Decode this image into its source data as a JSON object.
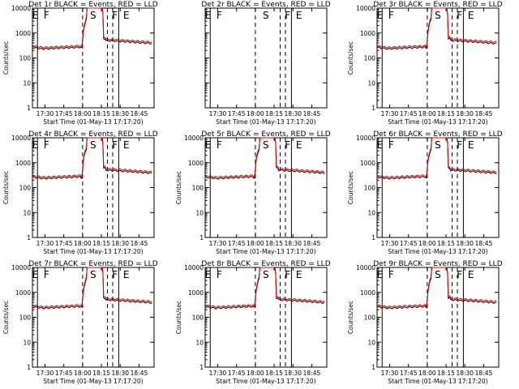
{
  "chart_data": [
    {
      "type": "line",
      "title": "Det 1r BLACK = Events, RED = LLD",
      "xlabel": "Start Time (01-May-13 17:17:20)",
      "ylabel": "Counts/sec",
      "xtick_labels": [
        "17:30",
        "17:45",
        "18:00",
        "18:15",
        "18:30",
        "18:45"
      ],
      "ytick_labels": [
        "1",
        "10",
        "100",
        "1000",
        "10000"
      ],
      "yscale": "log",
      "ylim": [
        1,
        10000
      ],
      "xlim_min": [
        17.33,
        18.95
      ],
      "flag_letters": [
        "E",
        "F",
        "S",
        "F",
        "E"
      ],
      "has_data": true
    },
    {
      "type": "line",
      "title": "Det 2r BLACK = Events, RED = LLD",
      "xlabel": "Start Time (01-May-13 17:17:20)",
      "ylabel": "",
      "xtick_labels": [
        "17:30",
        "17:45",
        "18:00",
        "18:15",
        "18:30",
        "18:45"
      ],
      "ytick_labels": [],
      "yscale": "log",
      "ylim": [
        1,
        10000
      ],
      "xlim_min": [
        17.33,
        18.95
      ],
      "flag_letters": [
        "E",
        "F",
        "S",
        "F",
        "E"
      ],
      "has_data": false
    },
    {
      "type": "line",
      "title": "Det 3r BLACK = Events, RED = LLD",
      "xlabel": "Start Time (01-May-13 17:17:20)",
      "ylabel": "Counts/sec",
      "xtick_labels": [
        "17:30",
        "17:45",
        "18:00",
        "18:15",
        "18:30",
        "18:45"
      ],
      "ytick_labels": [
        "1",
        "10",
        "100",
        "1000",
        "10000"
      ],
      "yscale": "log",
      "ylim": [
        1,
        10000
      ],
      "xlim_min": [
        17.33,
        18.95
      ],
      "flag_letters": [
        "E",
        "F",
        "S",
        "F",
        "E"
      ],
      "has_data": true
    },
    {
      "type": "line",
      "title": "Det 4r BLACK = Events, RED = LLD",
      "xlabel": "Start Time (01-May-13 17:17:20)",
      "ylabel": "Counts/sec",
      "xtick_labels": [
        "17:30",
        "17:45",
        "18:00",
        "18:15",
        "18:30",
        "18:45"
      ],
      "ytick_labels": [
        "1",
        "10",
        "100",
        "1000",
        "10000"
      ],
      "yscale": "log",
      "ylim": [
        1,
        10000
      ],
      "xlim_min": [
        17.33,
        18.95
      ],
      "flag_letters": [
        "E",
        "F",
        "S",
        "F",
        "E"
      ],
      "has_data": true
    },
    {
      "type": "line",
      "title": "Det 5r BLACK = Events, RED = LLD",
      "xlabel": "Start Time (01-May-13 17:17:20)",
      "ylabel": "Counts/sec",
      "xtick_labels": [
        "17:30",
        "17:45",
        "18:00",
        "18:15",
        "18:30",
        "18:45"
      ],
      "ytick_labels": [
        "1",
        "10",
        "100",
        "1000",
        "10000"
      ],
      "yscale": "log",
      "ylim": [
        1,
        10000
      ],
      "xlim_min": [
        17.33,
        18.95
      ],
      "flag_letters": [
        "E",
        "F",
        "S",
        "F",
        "E"
      ],
      "has_data": true
    },
    {
      "type": "line",
      "title": "Det 6r BLACK = Events, RED = LLD",
      "xlabel": "Start Time (01-May-13 17:17:20)",
      "ylabel": "Counts/sec",
      "xtick_labels": [
        "17:30",
        "17:45",
        "18:00",
        "18:15",
        "18:30",
        "18:45"
      ],
      "ytick_labels": [
        "1",
        "10",
        "100",
        "1000",
        "10000"
      ],
      "yscale": "log",
      "ylim": [
        1,
        10000
      ],
      "xlim_min": [
        17.33,
        18.95
      ],
      "flag_letters": [
        "E",
        "F",
        "S",
        "F",
        "E"
      ],
      "has_data": true
    },
    {
      "type": "line",
      "title": "Det 7r BLACK = Events, RED = LLD",
      "xlabel": "Start Time (01-May-13 17:17:20)",
      "ylabel": "Counts/sec",
      "xtick_labels": [
        "17:30",
        "17:45",
        "18:00",
        "18:15",
        "18:30",
        "18:45"
      ],
      "ytick_labels": [
        "1",
        "10",
        "100",
        "1000",
        "10000"
      ],
      "yscale": "log",
      "ylim": [
        1,
        10000
      ],
      "xlim_min": [
        17.33,
        18.95
      ],
      "flag_letters": [
        "E",
        "F",
        "S",
        "F",
        "E"
      ],
      "has_data": true
    },
    {
      "type": "line",
      "title": "Det 8r BLACK = Events, RED = LLD",
      "xlabel": "Start Time (01-May-13 17:17:20)",
      "ylabel": "Counts/sec",
      "xtick_labels": [
        "17:30",
        "17:45",
        "18:00",
        "18:15",
        "18:30",
        "18:45"
      ],
      "ytick_labels": [
        "1",
        "10",
        "100",
        "1000",
        "10000"
      ],
      "yscale": "log",
      "ylim": [
        1,
        10000
      ],
      "xlim_min": [
        17.33,
        18.95
      ],
      "flag_letters": [
        "E",
        "F",
        "S",
        "F",
        "E"
      ],
      "has_data": true
    },
    {
      "type": "line",
      "title": "Det 9r BLACK = Events, RED = LLD",
      "xlabel": "Start Time (01-May-13 17:17:20)",
      "ylabel": "Counts/sec",
      "xtick_labels": [
        "17:30",
        "17:45",
        "18:00",
        "18:15",
        "18:30",
        "18:45"
      ],
      "ytick_labels": [
        "1",
        "10",
        "100",
        "1000",
        "10000"
      ],
      "yscale": "log",
      "ylim": [
        1,
        10000
      ],
      "xlim_min": [
        17.33,
        18.95
      ],
      "flag_letters": [
        "E",
        "F",
        "S",
        "F",
        "E"
      ],
      "has_data": true
    }
  ],
  "series_colors": {
    "events": "#000000",
    "lld": "#e00000"
  }
}
